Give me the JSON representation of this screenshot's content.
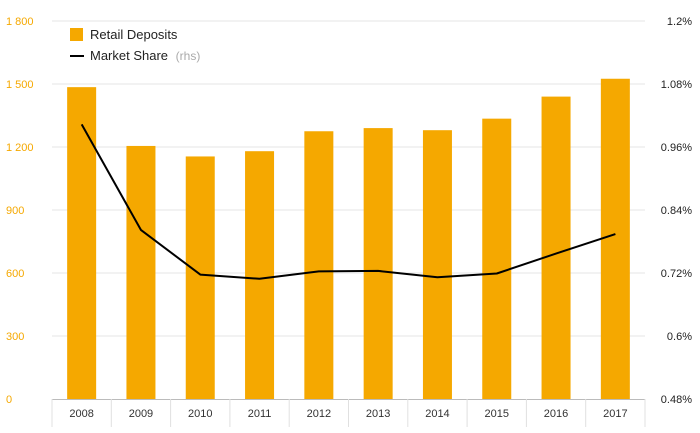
{
  "chart_data": {
    "type": "bar",
    "categories": [
      "2008",
      "2009",
      "2010",
      "2011",
      "2012",
      "2013",
      "2014",
      "2015",
      "2016",
      "2017"
    ],
    "series": [
      {
        "name": "Retail Deposits",
        "type": "bar",
        "axis": "left",
        "color": "#f5a800",
        "values": [
          1485,
          1205,
          1155,
          1180,
          1275,
          1290,
          1280,
          1335,
          1440,
          1525
        ]
      },
      {
        "name": "Market Share",
        "name_suffix": "(rhs)",
        "type": "line",
        "axis": "right",
        "color": "#000000",
        "values": [
          1.003,
          0.802,
          0.717,
          0.709,
          0.723,
          0.724,
          0.712,
          0.719,
          0.757,
          0.794
        ]
      }
    ],
    "y_left": {
      "ylim": [
        0,
        1800
      ],
      "ticks": [
        0,
        300,
        600,
        900,
        1200,
        1500,
        1800
      ],
      "tick_labels": [
        "0",
        "300",
        "600",
        "900",
        "1 200",
        "1 500",
        "1 800"
      ]
    },
    "y_right": {
      "ylim": [
        0.48,
        1.2
      ],
      "ticks": [
        0.48,
        0.6,
        0.72,
        0.84,
        0.96,
        1.08,
        1.2
      ],
      "tick_labels": [
        "0.48%",
        "0.6%",
        "0.72%",
        "0.84%",
        "0.96%",
        "1.08%",
        "1.2%"
      ]
    },
    "grid": true,
    "legend_position": "top-left",
    "colors": {
      "bar": "#f5a800",
      "line": "#000000",
      "left_axis_text": "#f5a800",
      "grid": "#e6e6e6"
    }
  }
}
